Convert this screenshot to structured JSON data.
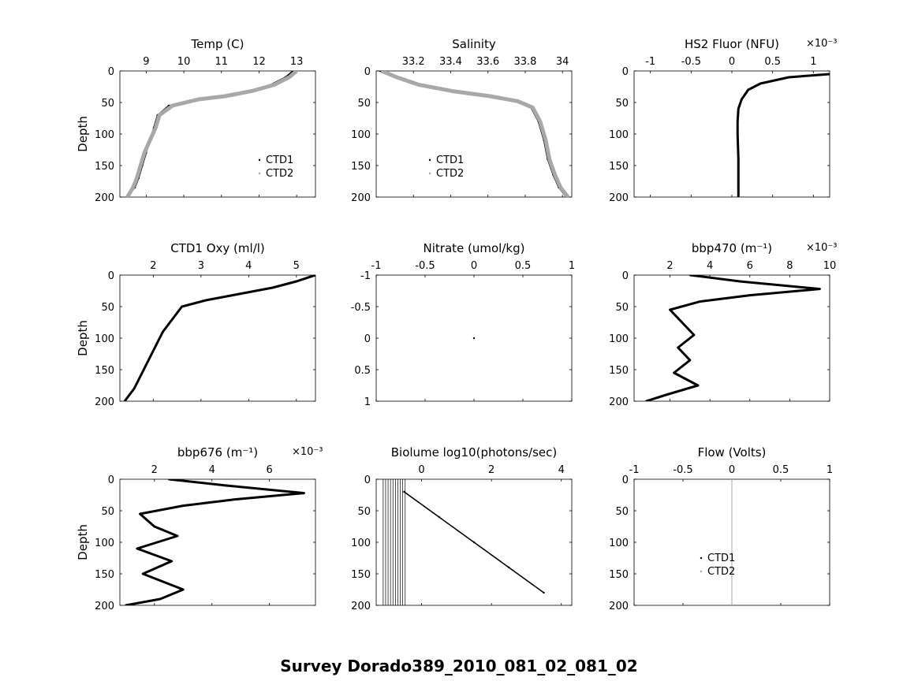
{
  "suptitle": "Survey Dorado389_2010_081_02_081_02",
  "colors": {
    "ctd1": "#000000",
    "ctd2": "#a8a8a8"
  },
  "chart_data": [
    {
      "type": "scatter",
      "title": "Temp (C)",
      "ylabel": "Depth",
      "xlim": [
        8.3,
        13.5
      ],
      "ylim": [
        0,
        200
      ],
      "y_reversed": true,
      "xticks": [
        9,
        10,
        11,
        12,
        13
      ],
      "xtick_labels": [
        "9",
        "10",
        "11",
        "12",
        "13"
      ],
      "yticks": [
        0,
        50,
        100,
        150,
        200
      ],
      "ytick_labels": [
        "0",
        "50",
        "100",
        "150",
        "200"
      ],
      "legend": {
        "entries": [
          "CTD1",
          "CTD2"
        ],
        "placement": "lower-right"
      },
      "series": [
        {
          "name": "CTD1",
          "color": "#000000",
          "x": [
            12.9,
            12.7,
            12.3,
            11.7,
            11.0,
            10.3,
            9.6,
            9.3,
            9.2,
            9.1,
            9.0,
            8.9,
            8.8,
            8.7,
            8.5
          ],
          "y": [
            0,
            10,
            22,
            32,
            40,
            45,
            55,
            70,
            90,
            110,
            130,
            150,
            170,
            185,
            200
          ]
        },
        {
          "name": "CTD2",
          "color": "#a8a8a8",
          "x": [
            13.0,
            12.8,
            12.4,
            11.8,
            11.1,
            10.4,
            9.7,
            9.35,
            9.25,
            9.1,
            8.95,
            8.85,
            8.75,
            8.65,
            8.5
          ],
          "y": [
            0,
            10,
            22,
            32,
            40,
            45,
            55,
            70,
            90,
            110,
            130,
            150,
            170,
            185,
            200
          ]
        }
      ]
    },
    {
      "type": "scatter",
      "title": "Salinity",
      "ylabel": "",
      "xlim": [
        33.0,
        34.05
      ],
      "ylim": [
        0,
        200
      ],
      "y_reversed": true,
      "xticks": [
        33.2,
        33.4,
        33.6,
        33.8,
        34.0
      ],
      "xtick_labels": [
        "33.2",
        "33.4",
        "33.6",
        "33.8",
        "34"
      ],
      "yticks": [
        0,
        50,
        100,
        150,
        200
      ],
      "ytick_labels": [
        "0",
        "50",
        "100",
        "150",
        "200"
      ],
      "legend": {
        "entries": [
          "CTD1",
          "CTD2"
        ],
        "placement": "lower-left"
      },
      "series": [
        {
          "name": "CTD1",
          "color": "#000000",
          "x": [
            33.02,
            33.1,
            33.22,
            33.4,
            33.6,
            33.75,
            33.83,
            33.87,
            33.9,
            33.92,
            33.95,
            33.98,
            34.02
          ],
          "y": [
            0,
            10,
            22,
            32,
            40,
            48,
            58,
            80,
            110,
            140,
            165,
            185,
            200
          ]
        },
        {
          "name": "CTD2",
          "color": "#a8a8a8",
          "x": [
            33.03,
            33.11,
            33.23,
            33.41,
            33.61,
            33.76,
            33.84,
            33.88,
            33.91,
            33.93,
            33.96,
            33.99,
            34.03
          ],
          "y": [
            0,
            10,
            22,
            32,
            40,
            48,
            58,
            80,
            110,
            140,
            165,
            185,
            200
          ]
        }
      ]
    },
    {
      "type": "line",
      "title": "HS2 Fluor (NFU)",
      "exponent_label": "×10⁻³",
      "ylabel": "",
      "xlim": [
        -1.2,
        1.2
      ],
      "ylim": [
        0,
        200
      ],
      "y_reversed": true,
      "xticks": [
        -1,
        -0.5,
        0,
        0.5,
        1
      ],
      "xtick_labels": [
        "-1",
        "-0.5",
        "0",
        "0.5",
        "1"
      ],
      "yticks": [
        0,
        50,
        100,
        150,
        200
      ],
      "ytick_labels": [
        "0",
        "50",
        "100",
        "150",
        "200"
      ],
      "series": [
        {
          "name": "",
          "color": "#000000",
          "x": [
            1.2,
            0.7,
            0.35,
            0.2,
            0.12,
            0.08,
            0.07,
            0.07,
            0.08,
            0.08,
            0.08
          ],
          "y": [
            5,
            10,
            20,
            30,
            45,
            60,
            80,
            100,
            140,
            180,
            200
          ]
        }
      ]
    },
    {
      "type": "line",
      "title": "CTD1 Oxy (ml/l)",
      "ylabel": "Depth",
      "xlim": [
        1.3,
        5.4
      ],
      "ylim": [
        0,
        200
      ],
      "y_reversed": true,
      "xticks": [
        2,
        3,
        4,
        5
      ],
      "xtick_labels": [
        "2",
        "3",
        "4",
        "5"
      ],
      "yticks": [
        0,
        50,
        100,
        150,
        200
      ],
      "ytick_labels": [
        "0",
        "50",
        "100",
        "150",
        "200"
      ],
      "series": [
        {
          "name": "",
          "color": "#000000",
          "x": [
            5.4,
            5.0,
            4.5,
            3.8,
            3.1,
            2.6,
            2.4,
            2.2,
            2.0,
            1.8,
            1.6,
            1.4
          ],
          "y": [
            0,
            10,
            20,
            30,
            40,
            50,
            70,
            90,
            120,
            150,
            180,
            200
          ]
        }
      ]
    },
    {
      "type": "scatter",
      "title": "Nitrate (umol/kg)",
      "ylabel": "",
      "xlim": [
        -1,
        1
      ],
      "ylim": [
        -1,
        1
      ],
      "y_reversed": true,
      "xticks": [
        -1,
        -0.5,
        0,
        0.5,
        1
      ],
      "xtick_labels": [
        "-1",
        "-0.5",
        "0",
        "0.5",
        "1"
      ],
      "yticks": [
        -1,
        -0.5,
        0,
        0.5,
        1
      ],
      "ytick_labels": [
        "-1",
        "-0.5",
        "0",
        "0.5",
        "1"
      ],
      "series": [
        {
          "name": "",
          "color": "#000000",
          "x": [
            0
          ],
          "y": [
            0
          ]
        }
      ]
    },
    {
      "type": "line",
      "title": "bbp470 (m⁻¹)",
      "exponent_label": "×10⁻³",
      "ylabel": "",
      "xlim": [
        0.2,
        10
      ],
      "ylim": [
        0,
        200
      ],
      "y_reversed": true,
      "xticks": [
        2,
        4,
        6,
        8,
        10
      ],
      "xtick_labels": [
        "2",
        "4",
        "6",
        "8",
        "10"
      ],
      "yticks": [
        0,
        50,
        100,
        150,
        200
      ],
      "ytick_labels": [
        "0",
        "50",
        "100",
        "150",
        "200"
      ],
      "series": [
        {
          "name": "",
          "color": "#000000",
          "x": [
            3.0,
            5.5,
            9.5,
            6.0,
            3.5,
            2.0,
            2.6,
            3.2,
            2.4,
            3.0,
            2.2,
            3.4,
            1.8,
            0.8
          ],
          "y": [
            0,
            10,
            22,
            32,
            42,
            55,
            75,
            95,
            115,
            135,
            155,
            175,
            190,
            200
          ]
        }
      ]
    },
    {
      "type": "line",
      "title": "bbp676 (m⁻¹)",
      "exponent_label": "×10⁻³",
      "ylabel": "Depth",
      "xlim": [
        0.8,
        7.6
      ],
      "ylim": [
        0,
        200
      ],
      "y_reversed": true,
      "xticks": [
        2,
        4,
        6
      ],
      "xtick_labels": [
        "2",
        "4",
        "6"
      ],
      "yticks": [
        0,
        50,
        100,
        150,
        200
      ],
      "ytick_labels": [
        "0",
        "50",
        "100",
        "150",
        "200"
      ],
      "series": [
        {
          "name": "",
          "color": "#000000",
          "x": [
            2.5,
            4.5,
            7.2,
            4.8,
            3.0,
            1.5,
            2.0,
            2.8,
            1.4,
            2.6,
            1.6,
            3.0,
            2.2,
            1.0
          ],
          "y": [
            0,
            10,
            22,
            32,
            42,
            55,
            75,
            90,
            110,
            130,
            150,
            175,
            190,
            200
          ]
        }
      ]
    },
    {
      "type": "scatter",
      "title": "Biolume log10(photons/sec)",
      "ylabel": "",
      "xlim": [
        -1.3,
        4.3
      ],
      "ylim": [
        0,
        200
      ],
      "y_reversed": true,
      "xticks": [
        0,
        2,
        4
      ],
      "xtick_labels": [
        "0",
        "2",
        "4"
      ],
      "yticks": [
        0,
        50,
        100,
        150,
        200
      ],
      "ytick_labels": [
        "0",
        "50",
        "100",
        "150",
        "200"
      ],
      "series": [
        {
          "name": "",
          "color": "#000000",
          "x": [
            -0.5,
            0.5,
            1.5,
            2.5,
            3.5
          ],
          "y": [
            20,
            60,
            100,
            140,
            180
          ]
        }
      ]
    },
    {
      "type": "scatter",
      "title": "Flow (Volts)",
      "ylabel": "",
      "xlim": [
        -1,
        1
      ],
      "ylim": [
        0,
        200
      ],
      "y_reversed": true,
      "xticks": [
        -1,
        -0.5,
        0,
        0.5,
        1
      ],
      "xtick_labels": [
        "-1",
        "-0.5",
        "0",
        "0.5",
        "1"
      ],
      "yticks": [
        0,
        50,
        100,
        150,
        200
      ],
      "ytick_labels": [
        "0",
        "50",
        "100",
        "150",
        "200"
      ],
      "legend": {
        "entries": [
          "CTD1",
          "CTD2"
        ],
        "placement": "center"
      },
      "series": [
        {
          "name": "CTD1",
          "color": "#000000",
          "x": [
            0,
            0
          ],
          "y": [
            0,
            200
          ]
        },
        {
          "name": "CTD2",
          "color": "#a8a8a8",
          "x": [
            0,
            0
          ],
          "y": [
            0,
            200
          ]
        }
      ]
    }
  ]
}
